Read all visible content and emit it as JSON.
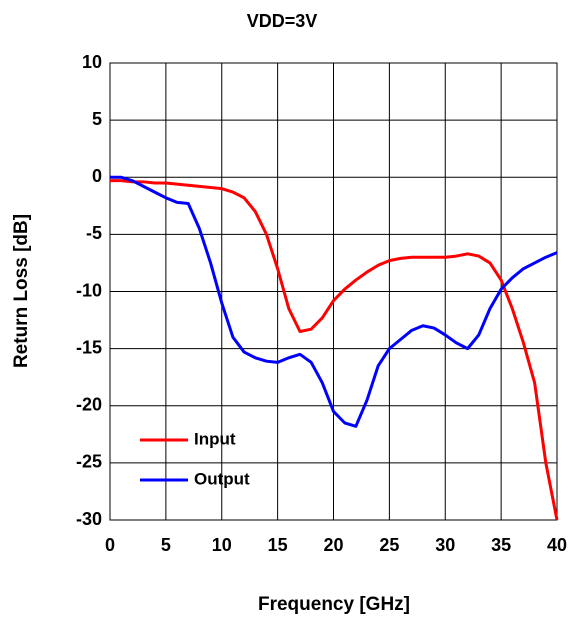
{
  "chart_data": {
    "type": "line",
    "title": "VDD=3V",
    "x_label": "Frequency [GHz]",
    "y_label": "Return Loss [dB]",
    "x": [
      0,
      1,
      2,
      3,
      4,
      5,
      6,
      7,
      8,
      9,
      10,
      11,
      12,
      13,
      14,
      15,
      16,
      17,
      18,
      19,
      20,
      21,
      22,
      23,
      24,
      25,
      26,
      27,
      28,
      29,
      30,
      31,
      32,
      33,
      34,
      35,
      36,
      37,
      38,
      39,
      40
    ],
    "series": [
      {
        "name": "Input",
        "color": "#ff0000",
        "values": [
          -0.3,
          -0.3,
          -0.4,
          -0.4,
          -0.5,
          -0.5,
          -0.6,
          -0.7,
          -0.8,
          -0.9,
          -1.0,
          -1.3,
          -1.8,
          -3,
          -5,
          -8,
          -11.5,
          -13.5,
          -13.3,
          -12.3,
          -10.8,
          -9.8,
          -9,
          -8.3,
          -7.7,
          -7.3,
          -7.1,
          -7,
          -7,
          -7,
          -7,
          -6.9,
          -6.7,
          -6.9,
          -7.5,
          -9,
          -11.5,
          -14.5,
          -18,
          -25,
          -30
        ]
      },
      {
        "name": "Output",
        "color": "#0000ff",
        "values": [
          0,
          0,
          -0.3,
          -0.8,
          -1.3,
          -1.8,
          -2.2,
          -2.3,
          -4.5,
          -7.5,
          -11,
          -14,
          -15.3,
          -15.8,
          -16.1,
          -16.2,
          -15.8,
          -15.5,
          -16.2,
          -18,
          -20.5,
          -21.5,
          -21.8,
          -19.5,
          -16.5,
          -15,
          -14.2,
          -13.4,
          -13,
          -13.2,
          -13.8,
          -14.5,
          -15,
          -13.8,
          -11.5,
          -9.8,
          -8.8,
          -8,
          -7.5,
          -7.0,
          -6.6
        ]
      }
    ],
    "xlim": [
      0,
      40
    ],
    "xticks": [
      0,
      5,
      10,
      15,
      20,
      25,
      30,
      35,
      40
    ],
    "ylim": [
      -30,
      10
    ],
    "yticks": [
      10,
      5,
      0,
      -5,
      -10,
      -15,
      -20,
      -25,
      -30
    ],
    "grid": true,
    "legend": "lower left"
  }
}
